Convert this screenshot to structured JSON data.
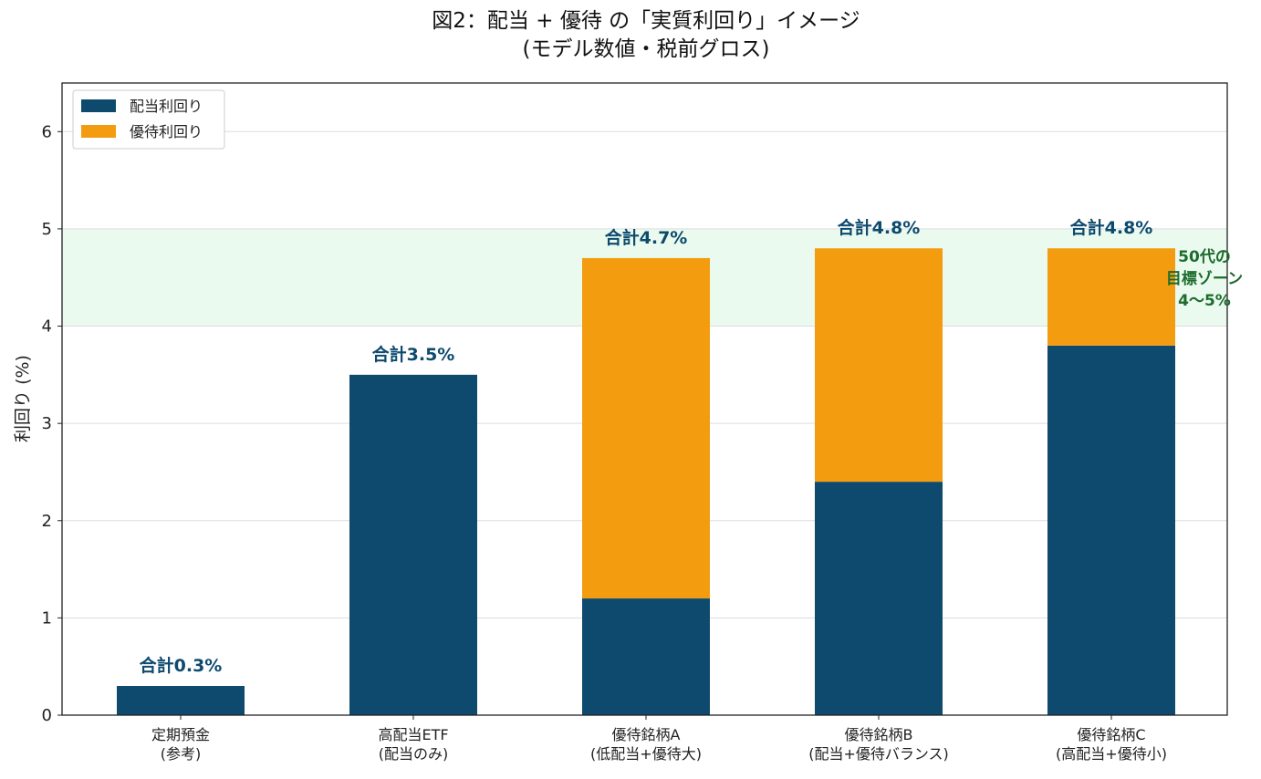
{
  "chart_data": {
    "type": "bar",
    "stacked": true,
    "title": "図2：配当 + 優待 の「実質利回り」イメージ",
    "subtitle": "(モデル数値・税前グロス)",
    "xlabel": "",
    "ylabel": "利回り (%)",
    "ylim": [
      0,
      6.5
    ],
    "yticks": [
      0,
      1,
      2,
      3,
      4,
      5,
      6
    ],
    "grid": "y",
    "legend_position": "top-left",
    "categories": [
      [
        "定期預金",
        "(参考)"
      ],
      [
        "高配当ETF",
        "(配当のみ)"
      ],
      [
        "優待銘柄A",
        "(低配当+優待大)"
      ],
      [
        "優待銘柄B",
        "(配当+優待バランス)"
      ],
      [
        "優待銘柄C",
        "(高配当+優待小)"
      ]
    ],
    "series": [
      {
        "name": "配当利回り",
        "color": "#0d4a6e",
        "values": [
          0.3,
          3.5,
          1.2,
          2.4,
          3.8
        ]
      },
      {
        "name": "優待利回り",
        "color": "#f39c0f",
        "values": [
          0.0,
          0.0,
          3.5,
          2.4,
          1.0
        ]
      }
    ],
    "total_labels": [
      "合計0.3%",
      "合計3.5%",
      "合計4.7%",
      "合計4.8%",
      "合計4.8%"
    ],
    "total_label_color": "#0d4a6e",
    "target_zone": {
      "range": [
        4,
        5
      ],
      "color": "#eafaee",
      "label_lines": [
        "50代の",
        "目標ゾーン",
        "4〜5%"
      ],
      "label_color": "#1d6b2d"
    }
  }
}
